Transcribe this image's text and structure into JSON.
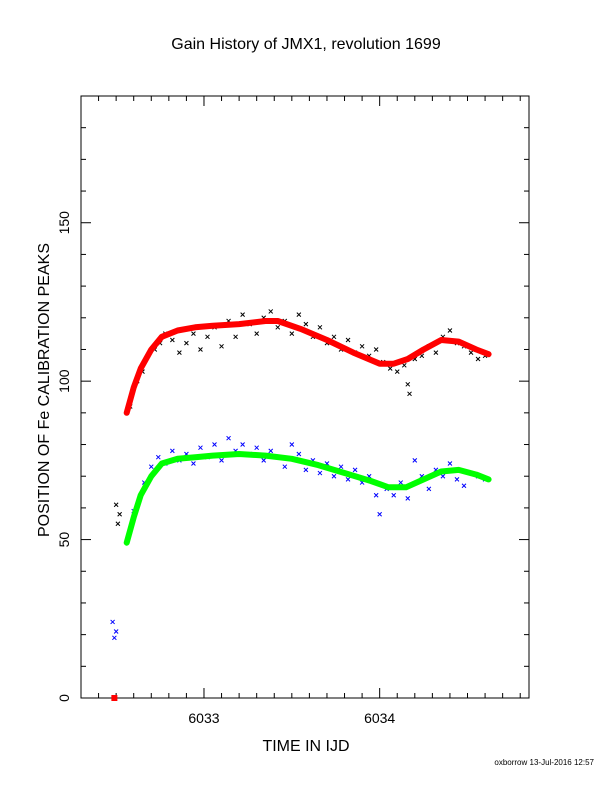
{
  "chart_data": {
    "type": "scatter",
    "title": "Gain History of JMX1, revolution 1699",
    "xlabel": "TIME IN IJD",
    "ylabel": "POSITION OF Fe CALIBRATION PEAKS",
    "xlim": [
      6032.3,
      6034.85
    ],
    "ylim": [
      0,
      190
    ],
    "x_ticks": [
      6033,
      6034
    ],
    "y_ticks": [
      0,
      50,
      100,
      150
    ],
    "grid": false,
    "legend": "none",
    "series": [
      {
        "marker": "x",
        "color": "#000000",
        "points": [
          [
            6032.5,
            61
          ],
          [
            6032.51,
            55
          ],
          [
            6032.52,
            58
          ],
          [
            6032.56,
            90
          ],
          [
            6032.58,
            92
          ],
          [
            6032.6,
            98
          ],
          [
            6032.62,
            100
          ],
          [
            6032.65,
            103
          ],
          [
            6032.68,
            108
          ],
          [
            6032.72,
            110
          ],
          [
            6032.75,
            112
          ],
          [
            6032.78,
            115
          ],
          [
            6032.82,
            113
          ],
          [
            6032.86,
            109
          ],
          [
            6032.9,
            112
          ],
          [
            6032.94,
            115
          ],
          [
            6032.98,
            110
          ],
          [
            6033.02,
            114
          ],
          [
            6033.06,
            117
          ],
          [
            6033.1,
            111
          ],
          [
            6033.14,
            119
          ],
          [
            6033.18,
            114
          ],
          [
            6033.22,
            121
          ],
          [
            6033.26,
            118
          ],
          [
            6033.3,
            115
          ],
          [
            6033.34,
            120
          ],
          [
            6033.38,
            122
          ],
          [
            6033.42,
            117
          ],
          [
            6033.46,
            119
          ],
          [
            6033.5,
            115
          ],
          [
            6033.54,
            121
          ],
          [
            6033.58,
            118
          ],
          [
            6033.62,
            114
          ],
          [
            6033.66,
            117
          ],
          [
            6033.7,
            112
          ],
          [
            6033.74,
            114
          ],
          [
            6033.78,
            110
          ],
          [
            6033.82,
            113
          ],
          [
            6033.86,
            109
          ],
          [
            6033.9,
            111
          ],
          [
            6033.94,
            108
          ],
          [
            6033.98,
            110
          ],
          [
            6034.02,
            106
          ],
          [
            6034.06,
            104
          ],
          [
            6034.1,
            103
          ],
          [
            6034.14,
            105
          ],
          [
            6034.16,
            99
          ],
          [
            6034.17,
            96
          ],
          [
            6034.2,
            107
          ],
          [
            6034.24,
            108
          ],
          [
            6034.28,
            111
          ],
          [
            6034.32,
            109
          ],
          [
            6034.36,
            114
          ],
          [
            6034.4,
            116
          ],
          [
            6034.44,
            112
          ],
          [
            6034.48,
            111
          ],
          [
            6034.52,
            109
          ],
          [
            6034.56,
            107
          ],
          [
            6034.6,
            108
          ]
        ]
      },
      {
        "marker": "x",
        "color": "#0000ff",
        "points": [
          [
            6032.48,
            24
          ],
          [
            6032.49,
            19
          ],
          [
            6032.5,
            21
          ],
          [
            6032.6,
            59
          ],
          [
            6032.66,
            68
          ],
          [
            6032.7,
            73
          ],
          [
            6032.74,
            76
          ],
          [
            6032.78,
            74
          ],
          [
            6032.82,
            78
          ],
          [
            6032.86,
            75
          ],
          [
            6032.9,
            77
          ],
          [
            6032.94,
            74
          ],
          [
            6032.98,
            79
          ],
          [
            6033.02,
            76
          ],
          [
            6033.06,
            80
          ],
          [
            6033.1,
            75
          ],
          [
            6033.14,
            82
          ],
          [
            6033.18,
            78
          ],
          [
            6033.22,
            80
          ],
          [
            6033.26,
            77
          ],
          [
            6033.3,
            79
          ],
          [
            6033.34,
            75
          ],
          [
            6033.38,
            78
          ],
          [
            6033.42,
            76
          ],
          [
            6033.46,
            73
          ],
          [
            6033.5,
            80
          ],
          [
            6033.54,
            77
          ],
          [
            6033.58,
            72
          ],
          [
            6033.62,
            75
          ],
          [
            6033.66,
            71
          ],
          [
            6033.7,
            74
          ],
          [
            6033.74,
            70
          ],
          [
            6033.78,
            73
          ],
          [
            6033.82,
            69
          ],
          [
            6033.86,
            72
          ],
          [
            6033.9,
            68
          ],
          [
            6033.94,
            70
          ],
          [
            6033.98,
            64
          ],
          [
            6034.0,
            58
          ],
          [
            6034.04,
            66
          ],
          [
            6034.08,
            64
          ],
          [
            6034.12,
            68
          ],
          [
            6034.16,
            63
          ],
          [
            6034.2,
            75
          ],
          [
            6034.24,
            70
          ],
          [
            6034.28,
            66
          ],
          [
            6034.32,
            72
          ],
          [
            6034.36,
            70
          ],
          [
            6034.4,
            74
          ],
          [
            6034.44,
            69
          ],
          [
            6034.48,
            67
          ],
          [
            6034.52,
            71
          ],
          [
            6034.56,
            70
          ],
          [
            6034.6,
            69
          ]
        ]
      },
      {
        "type": "line",
        "color": "#ff0000",
        "x": [
          6032.56,
          6032.6,
          6032.64,
          6032.7,
          6032.76,
          6032.85,
          6032.95,
          6033.05,
          6033.2,
          6033.35,
          6033.42,
          6033.55,
          6033.7,
          6033.85,
          6034.0,
          6034.08,
          6034.16,
          6034.25,
          6034.35,
          6034.45,
          6034.55,
          6034.62
        ],
        "y": [
          90,
          98,
          104,
          110,
          114,
          116,
          117,
          117.5,
          118,
          119,
          119,
          116.5,
          113,
          109,
          105.5,
          105.5,
          107,
          110,
          113,
          112.5,
          110,
          108.5
        ]
      },
      {
        "type": "line",
        "color": "#00ff00",
        "x": [
          6032.56,
          6032.6,
          6032.64,
          6032.7,
          6032.76,
          6032.85,
          6032.95,
          6033.05,
          6033.2,
          6033.35,
          6033.5,
          6033.65,
          6033.8,
          6033.95,
          6034.05,
          6034.15,
          6034.25,
          6034.35,
          6034.45,
          6034.55,
          6034.62
        ],
        "y": [
          49,
          57,
          64,
          70,
          74,
          75.5,
          76,
          76.5,
          77,
          76.5,
          75.5,
          73.5,
          71,
          68.5,
          66.5,
          66.5,
          69,
          71.5,
          72,
          70.5,
          69
        ]
      },
      {
        "marker": "square",
        "color": "#ff0000",
        "points": [
          [
            6032.49,
            0
          ]
        ]
      }
    ]
  },
  "credit": "oxborrow 13-Jul-2016 12:57"
}
